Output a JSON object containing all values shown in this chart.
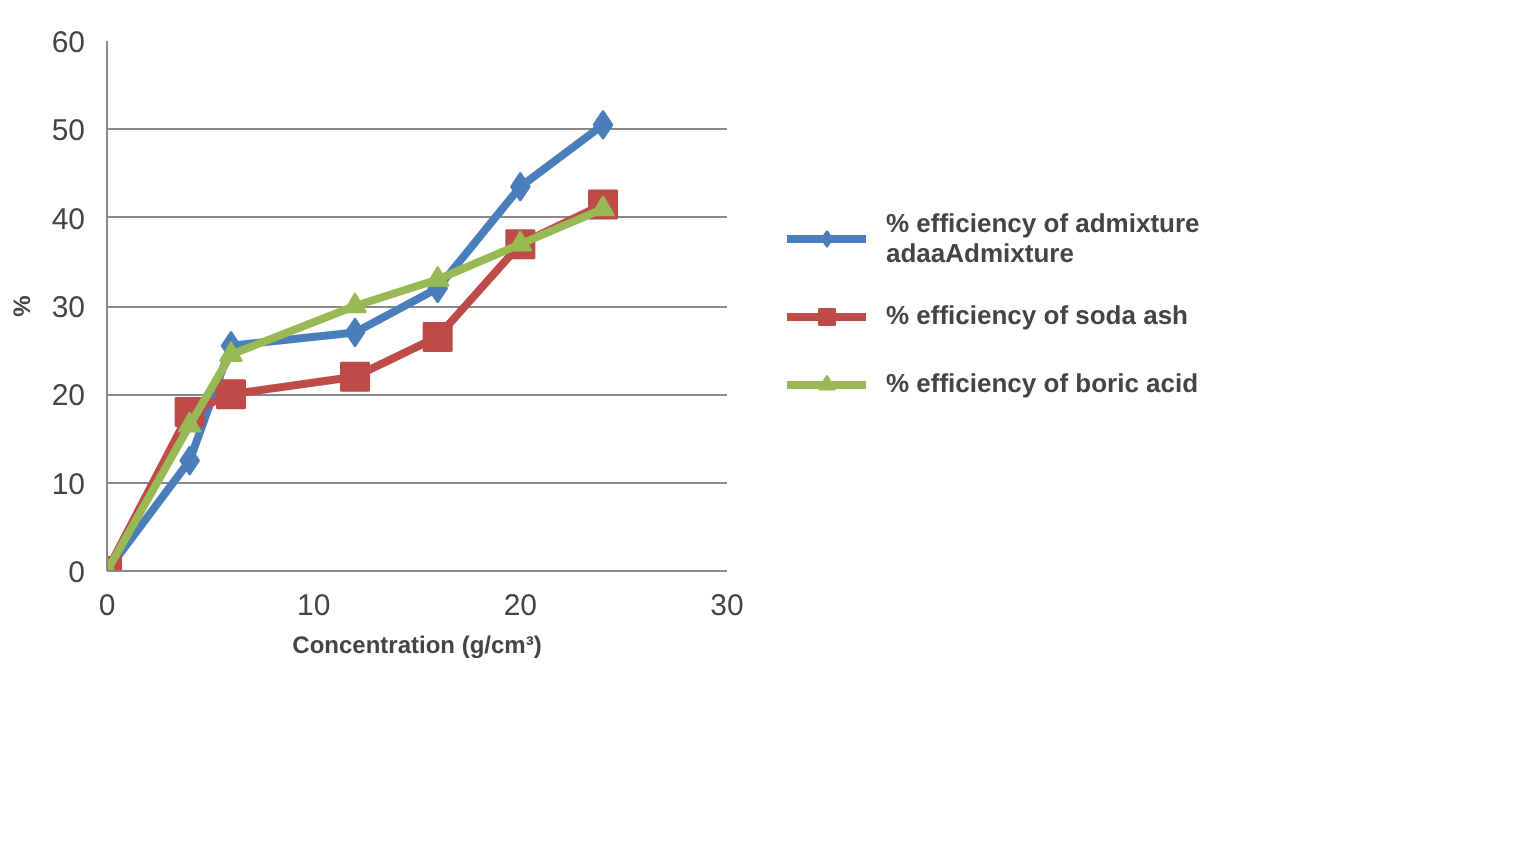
{
  "chart_data": {
    "type": "line",
    "xlabel": "Concentration (g/cm³)",
    "ylabel": "%",
    "x": [
      0,
      4,
      6,
      12,
      16,
      20,
      24
    ],
    "series": [
      {
        "name": "% efficiency of admixture\nadaaAdmixture",
        "color": "#4a7ebb",
        "marker": "diamond",
        "values": [
          0,
          12.5,
          25.5,
          27,
          32,
          43.5,
          50.5
        ]
      },
      {
        "name": "% efficiency of soda ash",
        "color": "#be4b48",
        "marker": "square",
        "values": [
          0,
          18,
          20,
          22,
          26.5,
          37,
          41.5
        ]
      },
      {
        "name": "% efficiency of boric acid",
        "color": "#98b954",
        "marker": "triangle",
        "values": [
          0,
          16.5,
          24.5,
          30,
          33,
          37,
          41
        ]
      }
    ],
    "xlim": [
      0,
      30
    ],
    "ylim": [
      0,
      60
    ],
    "xticks": [
      0,
      10,
      20,
      30
    ],
    "yticks": [
      0,
      10,
      20,
      30,
      40,
      50,
      60
    ],
    "grid": "y",
    "legend": "right"
  }
}
